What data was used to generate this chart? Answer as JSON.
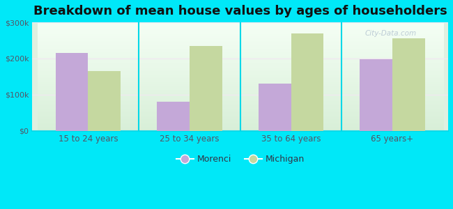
{
  "title": "Breakdown of mean house values by ages of householders",
  "categories": [
    "15 to 24 years",
    "25 to 34 years",
    "35 to 64 years",
    "65 years+"
  ],
  "morenci_values": [
    215000,
    80000,
    130000,
    198000
  ],
  "michigan_values": [
    165000,
    235000,
    270000,
    255000
  ],
  "morenci_color": "#c4a8d8",
  "michigan_color": "#c5d8a0",
  "background_outer": "#00e8f8",
  "background_inner": "#e0f0e0",
  "ylim": [
    0,
    300000
  ],
  "yticks": [
    0,
    100000,
    200000,
    300000
  ],
  "ytick_labels": [
    "$0",
    "$100k",
    "$200k",
    "$300k"
  ],
  "legend_morenci": "Morenci",
  "legend_michigan": "Michigan",
  "title_fontsize": 13,
  "bar_width": 0.32,
  "figsize": [
    6.5,
    3.0
  ],
  "dpi": 100,
  "watermark": "City-Data.com",
  "grid_color": "#e0ece0",
  "separator_color": "#00d8e8"
}
